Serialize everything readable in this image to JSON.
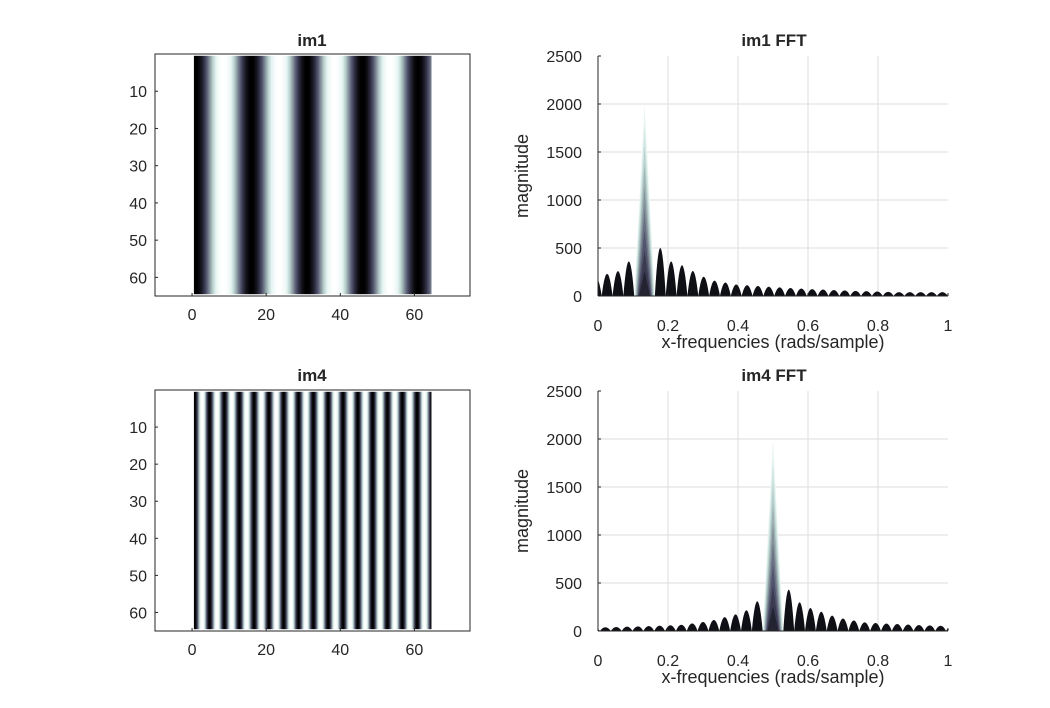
{
  "colors": {
    "background": "#ffffff",
    "axis": "#262626",
    "grid": "#dedede",
    "colormap": [
      "#000000",
      "#2a2a3c",
      "#555772",
      "#86939b",
      "#b6cfcc",
      "#e6f5f2",
      "#ffffff"
    ]
  },
  "chart_data": [
    {
      "type": "heatmap",
      "id": "im1",
      "title": "im1",
      "xlabel": "",
      "ylabel": "",
      "xlim": [
        -10,
        75
      ],
      "ylim": [
        65,
        0
      ],
      "image_width": 64,
      "image_height": 64,
      "stripe_period": 15,
      "x_ticks": [
        0,
        20,
        40,
        60
      ],
      "y_ticks": [
        10,
        20,
        30,
        40,
        50,
        60
      ],
      "colormap": "bone",
      "grid": false
    },
    {
      "type": "area",
      "id": "im1-fft",
      "title": "im1 FFT",
      "xlabel": "x-frequencies (rads/sample)",
      "ylabel": "magnitude",
      "xlim": [
        0,
        1
      ],
      "ylim": [
        0,
        2500
      ],
      "x_ticks": [
        0,
        0.2,
        0.4,
        0.6,
        0.8,
        1
      ],
      "y_ticks": [
        0,
        500,
        1000,
        1500,
        2000,
        2500
      ],
      "peak_frequency": 0.133,
      "peak_magnitude": 2000,
      "sidelobe_magnitudes": [
        500,
        360,
        320,
        260,
        200,
        160,
        140,
        120
      ],
      "sidelobe_spacing": 0.031,
      "colormap": "bone",
      "grid": true
    },
    {
      "type": "heatmap",
      "id": "im4",
      "title": "im4",
      "xlabel": "",
      "ylabel": "",
      "xlim": [
        -10,
        75
      ],
      "ylim": [
        65,
        0
      ],
      "image_width": 64,
      "image_height": 64,
      "stripe_period": 4,
      "x_ticks": [
        0,
        20,
        40,
        60
      ],
      "y_ticks": [
        10,
        20,
        30,
        40,
        50,
        60
      ],
      "colormap": "bone",
      "grid": false
    },
    {
      "type": "area",
      "id": "im4-fft",
      "title": "im4 FFT",
      "xlabel": "x-frequencies (rads/sample)",
      "ylabel": "magnitude",
      "xlim": [
        0,
        1
      ],
      "ylim": [
        0,
        2500
      ],
      "x_ticks": [
        0,
        0.2,
        0.4,
        0.6,
        0.8,
        1
      ],
      "y_ticks": [
        0,
        500,
        1000,
        1500,
        2000,
        2500
      ],
      "peak_frequency": 0.5,
      "peak_magnitude": 2000,
      "sidelobe_magnitudes": [
        430,
        300,
        240,
        200,
        160,
        130,
        110,
        90
      ],
      "sidelobe_spacing": 0.031,
      "colormap": "bone",
      "grid": true
    }
  ]
}
